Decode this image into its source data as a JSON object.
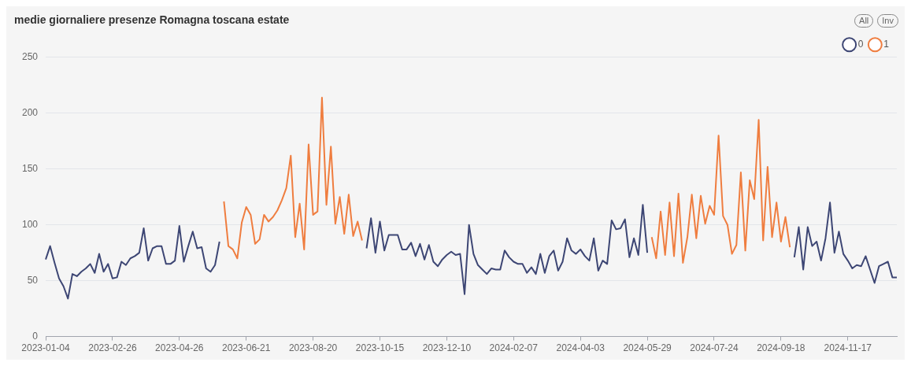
{
  "chart_data": {
    "type": "line",
    "title": "medie giornaliere presenze Romagna toscana estate",
    "grid": "y",
    "legend": "top right",
    "ylim": [
      0,
      250
    ],
    "yticks": [
      0,
      50,
      100,
      150,
      200,
      250
    ],
    "annotations": [
      "All",
      "Inv"
    ],
    "categories": [
      "2023-01-04",
      null,
      null,
      null,
      null,
      null,
      null,
      null,
      null,
      null,
      null,
      null,
      null,
      null,
      null,
      "2023-02-26",
      null,
      null,
      null,
      null,
      null,
      null,
      null,
      null,
      null,
      null,
      null,
      null,
      null,
      null,
      "2023-04-26",
      null,
      null,
      null,
      null,
      null,
      null,
      null,
      null,
      null,
      null,
      null,
      null,
      null,
      null,
      "2023-06-21",
      null,
      null,
      null,
      null,
      null,
      null,
      null,
      null,
      null,
      null,
      null,
      null,
      null,
      null,
      "2023-08-20",
      null,
      null,
      null,
      null,
      null,
      null,
      null,
      null,
      null,
      null,
      null,
      null,
      null,
      null,
      "2023-10-15",
      null,
      null,
      null,
      null,
      null,
      null,
      null,
      null,
      null,
      null,
      null,
      null,
      null,
      null,
      "2023-12-10",
      null,
      null,
      null,
      null,
      null,
      null,
      null,
      null,
      null,
      null,
      null,
      null,
      null,
      null,
      "2024-02-07",
      null,
      null,
      null,
      null,
      null,
      null,
      null,
      null,
      null,
      null,
      null,
      null,
      null,
      null,
      "2024-04-03",
      null,
      null,
      null,
      null,
      null,
      null,
      null,
      null,
      null,
      null,
      null,
      null,
      null,
      null,
      "2024-05-29",
      null,
      null,
      null,
      null,
      null,
      null,
      null,
      null,
      null,
      null,
      null,
      null,
      null,
      null,
      "2024-07-24",
      null,
      null,
      null,
      null,
      null,
      null,
      null,
      null,
      null,
      null,
      null,
      null,
      null,
      null,
      "2024-09-18",
      null,
      null,
      null,
      null,
      null,
      null,
      null,
      null,
      null,
      null,
      null,
      null,
      null,
      null,
      "2024-11-17",
      null,
      null,
      null,
      null,
      null,
      null,
      null,
      null,
      null,
      null,
      null
    ],
    "series": [
      {
        "name": "0",
        "color": "#3d4674",
        "values": [
          69,
          81,
          66,
          52,
          45,
          34,
          56,
          54,
          58,
          61,
          65,
          57,
          74,
          58,
          65,
          52,
          53,
          67,
          64,
          70,
          72,
          75,
          97,
          68,
          79,
          81,
          81,
          65,
          65,
          68,
          99,
          67,
          81,
          94,
          79,
          80,
          61,
          58,
          64,
          85,
          null,
          null,
          null,
          null,
          null,
          null,
          null,
          null,
          null,
          null,
          null,
          null,
          null,
          null,
          null,
          null,
          null,
          null,
          null,
          null,
          null,
          null,
          null,
          null,
          null,
          null,
          null,
          null,
          null,
          null,
          null,
          null,
          79,
          106,
          75,
          103,
          77,
          91,
          91,
          91,
          78,
          78,
          84,
          72,
          83,
          69,
          82,
          67,
          63,
          69,
          73,
          76,
          73,
          74,
          38,
          100,
          74,
          64,
          60,
          56,
          61,
          60,
          60,
          77,
          71,
          67,
          65,
          65,
          57,
          62,
          56,
          74,
          57,
          72,
          77,
          59,
          67,
          88,
          77,
          74,
          78,
          72,
          68,
          88,
          59,
          68,
          65,
          104,
          96,
          97,
          105,
          71,
          88,
          73,
          118,
          75,
          null,
          null,
          null,
          null,
          null,
          null,
          null,
          null,
          null,
          null,
          null,
          null,
          null,
          null,
          null,
          null,
          null,
          null,
          null,
          null,
          null,
          null,
          null,
          null,
          null,
          null,
          null,
          null,
          null,
          null,
          null,
          null,
          71,
          98,
          60,
          98,
          81,
          85,
          68,
          88,
          120,
          75,
          94,
          74,
          68,
          61,
          64,
          63,
          72,
          60,
          48,
          63,
          65,
          67,
          53,
          53
        ]
      },
      {
        "name": "1",
        "color": "#ef7d3f",
        "values": [
          null,
          null,
          null,
          null,
          null,
          null,
          null,
          null,
          null,
          null,
          null,
          null,
          null,
          null,
          null,
          null,
          null,
          null,
          null,
          null,
          null,
          null,
          null,
          null,
          null,
          null,
          null,
          null,
          null,
          null,
          null,
          null,
          null,
          null,
          null,
          null,
          null,
          null,
          null,
          null,
          121,
          81,
          78,
          70,
          102,
          116,
          109,
          83,
          87,
          109,
          103,
          107,
          113,
          122,
          133,
          162,
          89,
          119,
          78,
          172,
          109,
          112,
          214,
          118,
          170,
          101,
          125,
          92,
          127,
          90,
          103,
          86,
          null,
          null,
          null,
          null,
          null,
          null,
          null,
          null,
          null,
          null,
          null,
          null,
          null,
          null,
          null,
          null,
          null,
          null,
          null,
          null,
          null,
          null,
          null,
          null,
          null,
          null,
          null,
          null,
          null,
          null,
          null,
          null,
          null,
          null,
          null,
          null,
          null,
          null,
          null,
          null,
          null,
          null,
          null,
          null,
          null,
          null,
          null,
          null,
          null,
          null,
          null,
          null,
          null,
          null,
          null,
          null,
          null,
          null,
          null,
          null,
          null,
          null,
          null,
          null,
          89,
          70,
          112,
          73,
          120,
          72,
          128,
          66,
          89,
          127,
          88,
          126,
          101,
          117,
          109,
          180,
          108,
          100,
          74,
          82,
          147,
          77,
          140,
          123,
          194,
          86,
          152,
          89,
          120,
          85,
          107,
          80,
          null,
          null,
          null,
          null,
          null,
          null,
          null,
          null,
          null,
          null,
          null,
          null,
          null,
          null,
          null,
          null,
          null,
          null,
          null,
          null,
          null,
          null,
          null,
          null
        ]
      }
    ]
  }
}
